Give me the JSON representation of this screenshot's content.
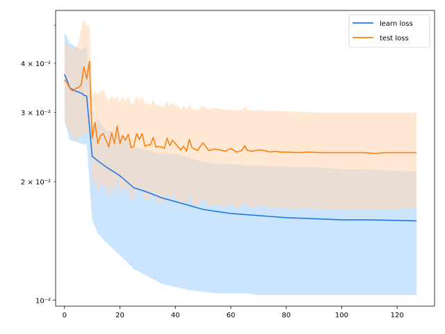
{
  "chart_data": {
    "type": "line",
    "title": "",
    "xlabel": "",
    "ylabel": "",
    "xlim": [
      -3.2,
      133.5
    ],
    "ylim": [
      0.00965,
      0.0545
    ],
    "yscale": "log",
    "grid": false,
    "legend_position": "top-right",
    "x_ticks": [
      0,
      20,
      40,
      60,
      80,
      100,
      120
    ],
    "x_tick_labels": [
      "0",
      "20",
      "40",
      "60",
      "80",
      "100",
      "120"
    ],
    "y_major_ticks": [
      0.01
    ],
    "y_major_labels": [
      "10⁻²"
    ],
    "y_minor_ticks": [
      0.02,
      0.03,
      0.04,
      0.05
    ],
    "y_minor_labels": [
      "2 × 10⁻²",
      "3 × 10⁻²",
      "4 × 10⁻²",
      ""
    ],
    "series": [
      {
        "name": "learn loss",
        "color": "#1f77e8",
        "band_color": "#a8d4ff",
        "x": [
          0,
          2,
          4,
          6,
          7,
          8,
          10,
          12,
          15,
          20,
          25,
          30,
          35,
          40,
          45,
          50,
          55,
          60,
          65,
          70,
          80,
          90,
          100,
          110,
          127
        ],
        "mean": [
          0.0375,
          0.0346,
          0.034,
          0.0336,
          0.0332,
          0.033,
          0.0232,
          0.0226,
          0.0218,
          0.0207,
          0.0193,
          0.0188,
          0.0182,
          0.0178,
          0.0174,
          0.017,
          0.0168,
          0.0166,
          0.0165,
          0.0164,
          0.0162,
          0.0161,
          0.016,
          0.016,
          0.0159
        ],
        "upper": [
          0.048,
          0.045,
          0.044,
          0.0432,
          0.044,
          0.044,
          0.028,
          0.029,
          0.027,
          0.0265,
          0.0245,
          0.024,
          0.0235,
          0.0235,
          0.023,
          0.0225,
          0.0222,
          0.0222,
          0.022,
          0.022,
          0.0218,
          0.0218,
          0.0215,
          0.0215,
          0.0212
        ],
        "lower": [
          0.0285,
          0.0255,
          0.0253,
          0.025,
          0.0248,
          0.025,
          0.016,
          0.0148,
          0.014,
          0.013,
          0.012,
          0.0115,
          0.011,
          0.0108,
          0.0106,
          0.0105,
          0.0104,
          0.0104,
          0.0104,
          0.0103,
          0.0103,
          0.0103,
          0.0103,
          0.0103,
          0.0103
        ]
      },
      {
        "name": "test loss",
        "color": "#ff7f0e",
        "band_color": "#ffd9b8",
        "x": [
          0,
          1,
          2,
          3,
          4,
          5,
          6,
          7,
          8,
          9,
          10,
          11,
          12,
          13,
          14,
          15,
          16,
          17,
          18,
          19,
          20,
          21,
          22,
          23,
          24,
          25,
          26,
          27,
          28,
          29,
          30,
          31,
          32,
          33,
          34,
          35,
          36,
          37,
          38,
          39,
          40,
          41,
          42,
          43,
          44,
          45,
          46,
          47,
          48,
          49,
          50,
          52,
          54,
          56,
          58,
          60,
          62,
          64,
          65,
          66,
          68,
          70,
          72,
          74,
          76,
          78,
          80,
          84,
          88,
          92,
          96,
          100,
          104,
          108,
          112,
          116,
          120,
          124,
          127
        ],
        "mean": [
          0.0363,
          0.0356,
          0.0345,
          0.034,
          0.0345,
          0.0347,
          0.0352,
          0.0392,
          0.0365,
          0.0405,
          0.0258,
          0.0283,
          0.025,
          0.0262,
          0.0265,
          0.0255,
          0.0245,
          0.0266,
          0.025,
          0.0277,
          0.025,
          0.0262,
          0.0255,
          0.0264,
          0.0244,
          0.0246,
          0.0265,
          0.0256,
          0.0265,
          0.0246,
          0.0248,
          0.0248,
          0.0259,
          0.0245,
          0.0246,
          0.0245,
          0.0243,
          0.0258,
          0.0247,
          0.0255,
          0.025,
          0.0245,
          0.0241,
          0.0246,
          0.0239,
          0.0256,
          0.0244,
          0.0242,
          0.024,
          0.0246,
          0.0251,
          0.024,
          0.0242,
          0.0241,
          0.0239,
          0.0243,
          0.0238,
          0.024,
          0.0247,
          0.024,
          0.0239,
          0.0241,
          0.024,
          0.0238,
          0.0239,
          0.0238,
          0.0238,
          0.0237,
          0.0238,
          0.0237,
          0.0237,
          0.0237,
          0.0237,
          0.0237,
          0.0236,
          0.0237,
          0.0237,
          0.0237,
          0.0237
        ],
        "upper": [
          0.045,
          0.0445,
          0.044,
          0.0435,
          0.044,
          0.045,
          0.049,
          0.052,
          0.05,
          0.05,
          0.033,
          0.034,
          0.0335,
          0.034,
          0.0342,
          0.033,
          0.032,
          0.033,
          0.0325,
          0.033,
          0.0318,
          0.033,
          0.032,
          0.033,
          0.0315,
          0.0318,
          0.033,
          0.032,
          0.033,
          0.0315,
          0.0318,
          0.0312,
          0.0325,
          0.0312,
          0.0315,
          0.031,
          0.0312,
          0.032,
          0.031,
          0.0318,
          0.0312,
          0.0312,
          0.0305,
          0.0312,
          0.0305,
          0.0315,
          0.0306,
          0.0305,
          0.0305,
          0.0308,
          0.0312,
          0.0305,
          0.0308,
          0.0306,
          0.0304,
          0.0305,
          0.0303,
          0.0305,
          0.031,
          0.0305,
          0.0303,
          0.0305,
          0.0303,
          0.0302,
          0.0303,
          0.0302,
          0.0302,
          0.0301,
          0.0301,
          0.03,
          0.03,
          0.03,
          0.03,
          0.03,
          0.03,
          0.03,
          0.03,
          0.03,
          0.03
        ],
        "lower": [
          0.0285,
          0.0275,
          0.0265,
          0.0258,
          0.0255,
          0.0258,
          0.026,
          0.0265,
          0.0265,
          0.027,
          0.0195,
          0.0205,
          0.0188,
          0.0195,
          0.0198,
          0.019,
          0.0182,
          0.0198,
          0.0185,
          0.0205,
          0.0185,
          0.0195,
          0.0188,
          0.0195,
          0.0178,
          0.018,
          0.0195,
          0.0185,
          0.0195,
          0.0178,
          0.018,
          0.018,
          0.019,
          0.0178,
          0.0179,
          0.0178,
          0.0176,
          0.0188,
          0.0178,
          0.0186,
          0.0181,
          0.0178,
          0.0174,
          0.0178,
          0.0172,
          0.0186,
          0.0176,
          0.0174,
          0.0173,
          0.0177,
          0.0182,
          0.0173,
          0.0175,
          0.0174,
          0.0172,
          0.0176,
          0.0171,
          0.0173,
          0.0179,
          0.0173,
          0.0172,
          0.0174,
          0.0173,
          0.0171,
          0.0172,
          0.0171,
          0.0171,
          0.017,
          0.0171,
          0.017,
          0.017,
          0.017,
          0.017,
          0.017,
          0.017,
          0.017,
          0.017,
          0.0171,
          0.0172
        ]
      }
    ]
  }
}
